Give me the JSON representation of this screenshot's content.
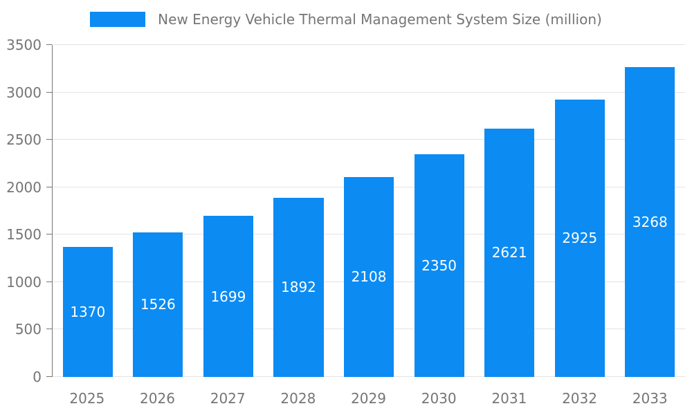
{
  "chart_data": {
    "type": "bar",
    "title": "New Energy Vehicle Thermal Management System Size (million)",
    "categories": [
      "2025",
      "2026",
      "2027",
      "2028",
      "2029",
      "2030",
      "2031",
      "2032",
      "2033"
    ],
    "values": [
      1370,
      1526,
      1699,
      1892,
      2108,
      2350,
      2621,
      2925,
      3268
    ],
    "xlabel": "",
    "ylabel": "",
    "ylim": [
      0,
      3500
    ],
    "yticks": [
      0,
      500,
      1000,
      1500,
      2000,
      2500,
      3000,
      3500
    ],
    "grid": "horizontal",
    "legend_position": "top",
    "value_labels": "inside-center",
    "colors": {
      "bar": "#0c8bf2",
      "bar_label": "#ffffff",
      "axis_text": "#757575",
      "axis_line": "#757575",
      "gridline": "#e3e3e3",
      "background": "#ffffff"
    }
  }
}
